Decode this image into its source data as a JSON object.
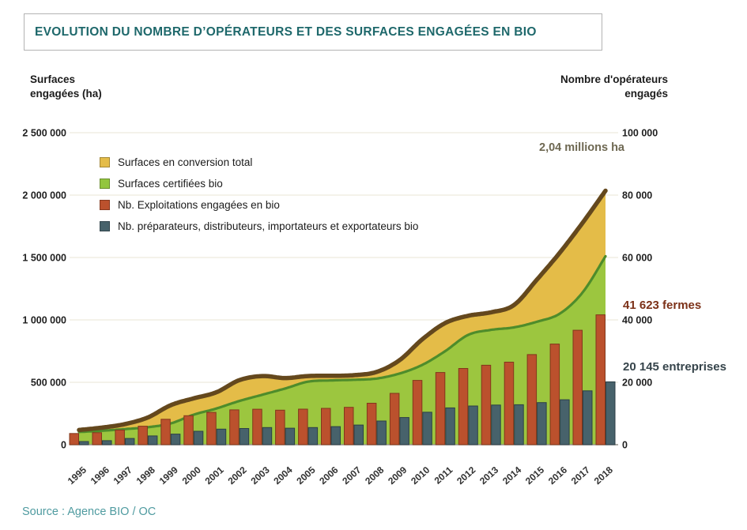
{
  "title": "EVOLUTION DU NOMBRE D’OPÉRATEURS ET DES SURFACES ENGAGÉES EN BIO",
  "source": "Source : Agence BIO / OC",
  "left_axis": {
    "title_line1": "Surfaces",
    "title_line2": "engagées (ha)",
    "tick_labels": [
      "0",
      "500 000",
      "1 000 000",
      "1 500 000",
      "2 000 000",
      "2 500 000"
    ]
  },
  "right_axis": {
    "title_line1": "Nombre d'opérateurs",
    "title_line2": "engagés",
    "tick_labels": [
      "0",
      "20 000",
      "40 000",
      "60 000",
      "80 000",
      "100 000"
    ]
  },
  "legend": {
    "items": [
      {
        "label": "Surfaces en conversion total",
        "color": "#e4bc48"
      },
      {
        "label": "Surfaces certifiées bio",
        "color": "#93c63e"
      },
      {
        "label": "Nb. Exploitations engagées en bio",
        "color": "#bb512d"
      },
      {
        "label": "Nb. préparateurs, distributeurs, importateurs et exportateurs bio",
        "color": "#47626b"
      }
    ]
  },
  "annotations": {
    "total_label": "2,04 millions ha",
    "farms_label": "41 623 fermes",
    "companies_label": "20 145 entreprises"
  },
  "colors": {
    "title_teal": "#1e686b",
    "source_teal": "#4f9ba0",
    "area_conversion": "#e4bc48",
    "area_certified": "#9cc63f",
    "line_certified": "#4e8c2b",
    "line_total_brown": "#64481d",
    "bar_farms": "#bb512d",
    "bar_farms_border": "#82371b",
    "bar_companies": "#47626b",
    "bar_companies_border": "#2c3f47",
    "gridline": "#e8e4d6",
    "axis_line": "#8f8c84",
    "annotation_total": "#6e6852",
    "annotation_farms": "#7c3118",
    "annotation_companies": "#36444b"
  },
  "chart_data": {
    "type": "combo",
    "subtype": "stacked-area (left axis) + grouped bars (right axis)",
    "title": "EVOLUTION DU NOMBRE D’OPÉRATEURS ET DES SURFACES ENGAGÉES EN BIO",
    "x": [
      1995,
      1996,
      1997,
      1998,
      1999,
      2000,
      2001,
      2002,
      2003,
      2004,
      2005,
      2006,
      2007,
      2008,
      2009,
      2010,
      2011,
      2012,
      2013,
      2014,
      2015,
      2016,
      2017,
      2018
    ],
    "ylim_left": [
      0,
      2500000
    ],
    "ylim_right": [
      0,
      100000
    ],
    "left_tick_values": [
      0,
      500000,
      1000000,
      1500000,
      2000000,
      2500000
    ],
    "right_tick_values": [
      0,
      20000,
      40000,
      60000,
      80000,
      100000
    ],
    "ylabel_left": "Surfaces engagées (ha)",
    "ylabel_right": "Nombre d'opérateurs engagés",
    "grid": true,
    "legend_position": "inside-top-left",
    "series": [
      {
        "name": "Surfaces certifiées bio",
        "type": "area",
        "axis": "left",
        "color": "#9cc63f",
        "edge_color": "#4e8c2b",
        "values": [
          102000,
          112000,
          125000,
          140000,
          170000,
          240000,
          290000,
          350000,
          400000,
          450000,
          505000,
          515000,
          520000,
          530000,
          570000,
          640000,
          750000,
          880000,
          920000,
          940000,
          985000,
          1050000,
          1220000,
          1510000
        ]
      },
      {
        "name": "Surfaces en conversion total",
        "type": "area-stacked-on-previous",
        "axis": "left",
        "color": "#e4bc48",
        "edge_color": "#64481d",
        "values": [
          16000,
          25000,
          40000,
          78000,
          146000,
          131000,
          130000,
          167000,
          150000,
          84000,
          45000,
          37000,
          37000,
          53000,
          107000,
          205000,
          225000,
          153000,
          141000,
          179000,
          337000,
          488000,
          558000,
          525000
        ]
      },
      {
        "name": "Total surfaces engagées (somme, ligne brune)",
        "type": "line-derived",
        "axis": "left",
        "color": "#64481d",
        "values": [
          118000,
          137000,
          165000,
          218000,
          316000,
          371000,
          420000,
          517000,
          550000,
          534000,
          550000,
          552000,
          557000,
          583000,
          677000,
          845000,
          975000,
          1033000,
          1061000,
          1119000,
          1322000,
          1538000,
          1778000,
          2035000
        ]
      },
      {
        "name": "Nb. Exploitations engagées en bio",
        "type": "bar",
        "axis": "right",
        "color": "#bb512d",
        "values": [
          3602,
          3854,
          4680,
          5914,
          8140,
          9283,
          10364,
          11177,
          11359,
          11059,
          11402,
          11640,
          11978,
          13298,
          16446,
          20604,
          23135,
          24425,
          25467,
          26466,
          28884,
          32264,
          36691,
          41623
        ]
      },
      {
        "name": "Nb. préparateurs, distributeurs, importateurs et exportateurs bio",
        "type": "bar",
        "axis": "right",
        "color": "#47626b",
        "values": [
          1000,
          1300,
          2000,
          2800,
          3400,
          4300,
          5000,
          5200,
          5500,
          5300,
          5500,
          5800,
          6300,
          7600,
          8700,
          10400,
          11800,
          12400,
          12700,
          12800,
          13500,
          14400,
          17276,
          20145
        ]
      }
    ],
    "annotations": [
      {
        "text": "2,04 millions ha",
        "refers_to": "total surfaces 2018"
      },
      {
        "text": "41 623 fermes",
        "refers_to": "exploitations 2018"
      },
      {
        "text": "20 145 entreprises",
        "refers_to": "préparateurs/distributeurs/importateurs/exportateurs 2018"
      }
    ]
  }
}
